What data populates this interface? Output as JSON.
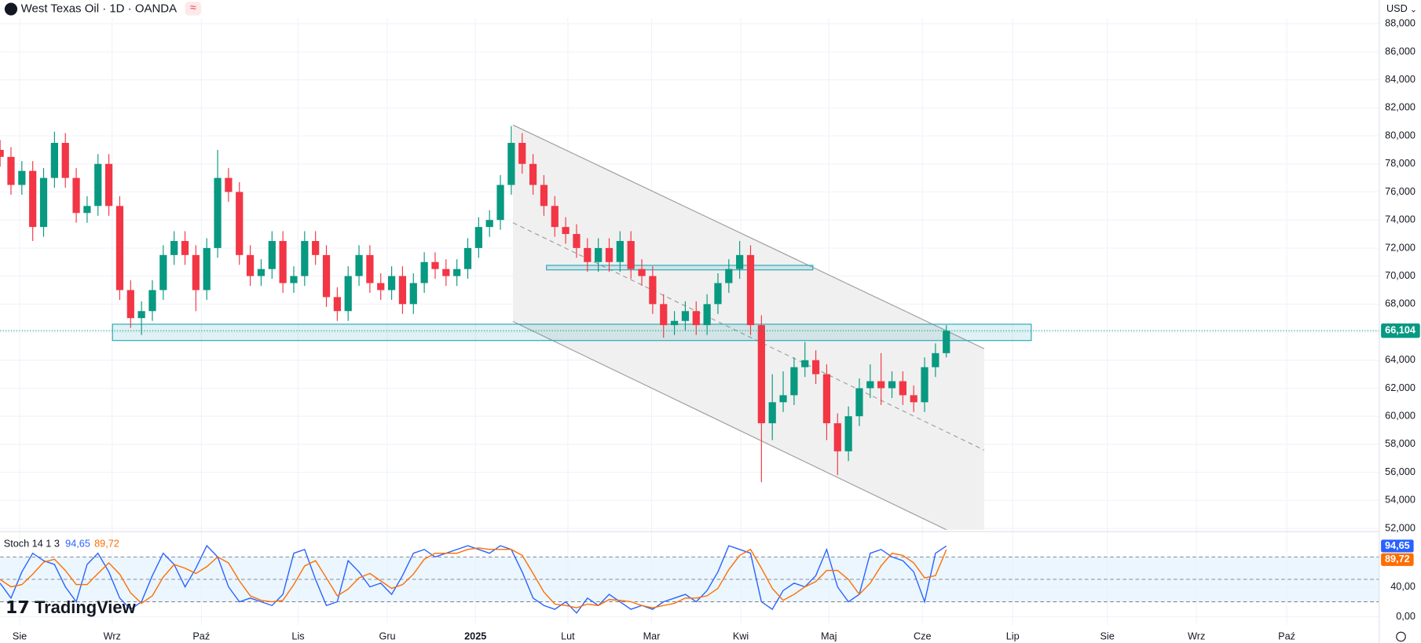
{
  "ui": {
    "currency": "USD",
    "brand": "TradingView"
  },
  "chart_data": [
    {
      "type": "candlestick",
      "title": "West Texas Oil · 1D · OANDA",
      "up_color": "#089981",
      "down_color": "#f23645",
      "xlim": [
        0,
        126.8
      ],
      "xticks": [
        {
          "value": 1.8,
          "label": "Sie"
        },
        {
          "value": 10.3,
          "label": "Wrz"
        },
        {
          "value": 18.5,
          "label": "Paź"
        },
        {
          "value": 27.4,
          "label": "Lis"
        },
        {
          "value": 35.6,
          "label": "Gru"
        },
        {
          "value": 43.7,
          "label": "2025"
        },
        {
          "value": 52.2,
          "label": "Lut"
        },
        {
          "value": 59.9,
          "label": "Mar"
        },
        {
          "value": 68.1,
          "label": "Kwi"
        },
        {
          "value": 76.2,
          "label": "Maj"
        },
        {
          "value": 84.8,
          "label": "Cze"
        },
        {
          "value": 93.1,
          "label": "Lip"
        },
        {
          "value": 101.8,
          "label": "Sie"
        },
        {
          "value": 110,
          "label": "Wrz"
        },
        {
          "value": 118.3,
          "label": "Paź"
        }
      ],
      "ylim": [
        51.9,
        88.4
      ],
      "yticks": [
        {
          "value": 52,
          "label": "52,000"
        },
        {
          "value": 54,
          "label": "54,000"
        },
        {
          "value": 56,
          "label": "56,000"
        },
        {
          "value": 58,
          "label": "58,000"
        },
        {
          "value": 60,
          "label": "60,000"
        },
        {
          "value": 62,
          "label": "62,000"
        },
        {
          "value": 64,
          "label": "64,000"
        },
        {
          "value": 66,
          "label": "66,000"
        },
        {
          "value": 68,
          "label": "68,000"
        },
        {
          "value": 70,
          "label": "70,000"
        },
        {
          "value": 72,
          "label": "72,000"
        },
        {
          "value": 74,
          "label": "74,000"
        },
        {
          "value": 76,
          "label": "76,000"
        },
        {
          "value": 78,
          "label": "78,000"
        },
        {
          "value": 80,
          "label": "80,000"
        },
        {
          "value": 82,
          "label": "82,000"
        },
        {
          "value": 84,
          "label": "84,000"
        },
        {
          "value": 86,
          "label": "86,000"
        },
        {
          "value": 88,
          "label": "88,000"
        }
      ],
      "grid": true,
      "last_price": {
        "value": 66.104,
        "label": "66,104"
      },
      "ohlc": [
        [
          79,
          79.7,
          77.8,
          78.5
        ],
        [
          78.5,
          79.2,
          75.8,
          76.5
        ],
        [
          76.5,
          78.2,
          75.8,
          77.5
        ],
        [
          77.5,
          78.2,
          72.5,
          73.5
        ],
        [
          73.5,
          77.7,
          72.8,
          77
        ],
        [
          77,
          80.3,
          76.3,
          79.5
        ],
        [
          79.5,
          80.2,
          76.3,
          77
        ],
        [
          77,
          77.7,
          73.8,
          74.5
        ],
        [
          74.5,
          75.7,
          73.8,
          75
        ],
        [
          75,
          78.7,
          74.3,
          78
        ],
        [
          78,
          78.7,
          74.3,
          75
        ],
        [
          75,
          75.7,
          68.3,
          69
        ],
        [
          69,
          69.7,
          66.3,
          67
        ],
        [
          67,
          68.2,
          65.8,
          67.5
        ],
        [
          67.5,
          69.7,
          66.8,
          69
        ],
        [
          69,
          72.2,
          68.3,
          71.5
        ],
        [
          71.5,
          73.2,
          70.8,
          72.5
        ],
        [
          72.5,
          73.2,
          70.8,
          71.5
        ],
        [
          71.5,
          72.2,
          67.5,
          69
        ],
        [
          69,
          72.7,
          68.3,
          72
        ],
        [
          72,
          79,
          71.3,
          77
        ],
        [
          77,
          77.7,
          75.3,
          76
        ],
        [
          76,
          76.7,
          70.8,
          71.5
        ],
        [
          71.5,
          72.2,
          69.3,
          70
        ],
        [
          70,
          71.2,
          69.3,
          70.5
        ],
        [
          70.5,
          73.2,
          69.8,
          72.5
        ],
        [
          72.5,
          73.2,
          68.8,
          69.5
        ],
        [
          69.5,
          70.7,
          68.8,
          70
        ],
        [
          70,
          73.2,
          69.3,
          72.5
        ],
        [
          72.5,
          73.2,
          70.8,
          71.5
        ],
        [
          71.5,
          72.2,
          67.8,
          68.5
        ],
        [
          68.5,
          69.2,
          66.8,
          67.5
        ],
        [
          67.5,
          70.7,
          66.8,
          70
        ],
        [
          70,
          72.2,
          69.3,
          71.5
        ],
        [
          71.5,
          72.2,
          68.8,
          69.5
        ],
        [
          69.5,
          70.2,
          68.3,
          69
        ],
        [
          69,
          70.7,
          68.3,
          70
        ],
        [
          70,
          70.7,
          67.3,
          68
        ],
        [
          68,
          70.2,
          67.3,
          69.5
        ],
        [
          69.5,
          71.7,
          68.8,
          71
        ],
        [
          71,
          71.7,
          69.8,
          70.5
        ],
        [
          70.5,
          71.2,
          69.3,
          70
        ],
        [
          70,
          71.2,
          69.3,
          70.5
        ],
        [
          70.5,
          72.7,
          69.8,
          72
        ],
        [
          72,
          74.2,
          71.3,
          73.5
        ],
        [
          73.5,
          74.7,
          72.8,
          74
        ],
        [
          74,
          77.2,
          73.3,
          76.5
        ],
        [
          76.5,
          80.7,
          75.8,
          79.5
        ],
        [
          79.5,
          80.2,
          77.3,
          78
        ],
        [
          78,
          78.7,
          75.8,
          76.5
        ],
        [
          76.5,
          77.2,
          74.3,
          75
        ],
        [
          75,
          75.7,
          72.8,
          73.5
        ],
        [
          73.5,
          74.2,
          72.3,
          73
        ],
        [
          73,
          73.7,
          71.3,
          72
        ],
        [
          72,
          72.7,
          70.3,
          71
        ],
        [
          71,
          72.7,
          70.3,
          72
        ],
        [
          72,
          72.7,
          70.3,
          71
        ],
        [
          71,
          73.2,
          70.3,
          72.5
        ],
        [
          72.5,
          73.2,
          69.8,
          70.5
        ],
        [
          70.5,
          71.2,
          69.3,
          70
        ],
        [
          70,
          70.7,
          67.3,
          68
        ],
        [
          68,
          68.7,
          65.6,
          66.5
        ],
        [
          66.5,
          67.5,
          65.8,
          66.8
        ],
        [
          66.8,
          68.2,
          66.1,
          67.5
        ],
        [
          67.5,
          68.2,
          65.8,
          66.5
        ],
        [
          66.5,
          68.7,
          65.8,
          68
        ],
        [
          68,
          70.2,
          67.3,
          69.5
        ],
        [
          69.5,
          71.2,
          68.8,
          70.5
        ],
        [
          70.5,
          72.5,
          69.8,
          71.5
        ],
        [
          71.5,
          72.2,
          65.8,
          66.5
        ],
        [
          66.5,
          67.2,
          55.3,
          59.5
        ],
        [
          59.5,
          63,
          58.3,
          61
        ],
        [
          61,
          63.2,
          60.3,
          61.5
        ],
        [
          61.5,
          64.2,
          60.8,
          63.5
        ],
        [
          63.5,
          65.3,
          62.8,
          64
        ],
        [
          64,
          64.7,
          62.3,
          63
        ],
        [
          63,
          63.7,
          58.3,
          59.5
        ],
        [
          59.5,
          60.2,
          55.8,
          57.5
        ],
        [
          57.5,
          60.7,
          56.8,
          60
        ],
        [
          60,
          62.7,
          59.3,
          62
        ],
        [
          62,
          63.7,
          61.3,
          62.5
        ],
        [
          62.5,
          64.5,
          60.8,
          62
        ],
        [
          62,
          63.2,
          61.3,
          62.5
        ],
        [
          62.5,
          63.2,
          60.8,
          61.5
        ],
        [
          61.5,
          62.2,
          60.3,
          61
        ],
        [
          61,
          64.2,
          60.3,
          63.5
        ],
        [
          63.5,
          65.2,
          62.8,
          64.5
        ],
        [
          64.5,
          66.5,
          64.2,
          66.1
        ]
      ]
    },
    {
      "type": "line",
      "title": "Stoch 14 1 3",
      "ylim": [
        -10.9,
        110.3
      ],
      "yticks": [
        {
          "value": 0,
          "label": "0,00"
        },
        {
          "value": 40,
          "label": "40,00"
        }
      ],
      "levels": [
        20,
        50,
        80
      ],
      "band_color": "#e3f2fd",
      "series": [
        {
          "color": "#2962ff",
          "last_value_label": "94,65",
          "values": [
            45,
            25,
            60,
            85,
            75,
            70,
            40,
            20,
            70,
            85,
            60,
            25,
            10,
            20,
            55,
            85,
            70,
            40,
            65,
            95,
            80,
            40,
            20,
            25,
            20,
            15,
            30,
            85,
            90,
            50,
            15,
            20,
            75,
            60,
            40,
            45,
            30,
            55,
            85,
            90,
            80,
            85,
            90,
            95,
            90,
            85,
            95,
            90,
            60,
            25,
            15,
            10,
            20,
            5,
            25,
            15,
            30,
            20,
            10,
            15,
            10,
            20,
            25,
            30,
            20,
            35,
            60,
            95,
            90,
            85,
            20,
            10,
            35,
            45,
            40,
            55,
            90,
            40,
            20,
            30,
            85,
            90,
            80,
            75,
            60,
            20,
            85,
            94.65
          ]
        },
        {
          "color": "#ff6d00",
          "last_value_label": "89,72",
          "values": [
            50,
            40,
            43,
            57,
            73,
            77,
            62,
            43,
            43,
            58,
            72,
            57,
            32,
            18,
            28,
            53,
            70,
            65,
            58,
            67,
            80,
            72,
            48,
            28,
            22,
            20,
            22,
            43,
            68,
            75,
            52,
            28,
            37,
            52,
            58,
            48,
            38,
            43,
            57,
            77,
            85,
            85,
            85,
            90,
            92,
            90,
            90,
            90,
            82,
            58,
            33,
            17,
            15,
            12,
            17,
            15,
            23,
            22,
            20,
            15,
            12,
            15,
            18,
            25,
            25,
            28,
            38,
            63,
            82,
            90,
            65,
            38,
            22,
            30,
            40,
            47,
            62,
            62,
            50,
            30,
            45,
            68,
            85,
            82,
            72,
            52,
            55,
            89.72
          ]
        }
      ]
    }
  ]
}
